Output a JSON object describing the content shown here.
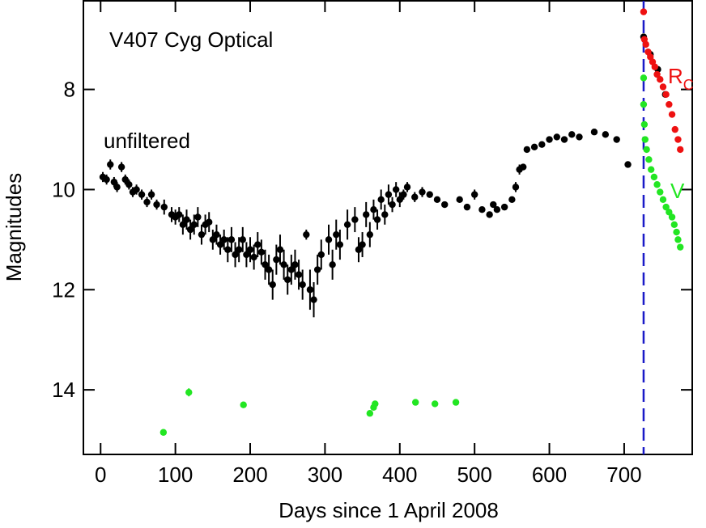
{
  "chart_data": {
    "type": "scatter",
    "title": "V407 Cyg Optical",
    "xlabel": "Days since 1 April 2008",
    "ylabel": "Magnitudes",
    "xlim": [
      -23,
      791
    ],
    "ylim": [
      6.23,
      15.29
    ],
    "y_inverted": true,
    "xticks": [
      0,
      100,
      200,
      300,
      400,
      500,
      600,
      700
    ],
    "yticks": [
      8,
      10,
      12,
      14
    ],
    "vline": {
      "x": 726,
      "color": "#1a1ac8",
      "style": "dashed"
    },
    "series": [
      {
        "name": "unfiltered",
        "color": "#000000",
        "x": [
          3,
          8,
          13,
          18,
          22,
          28,
          33,
          38,
          43,
          48,
          55,
          62,
          68,
          75,
          85,
          95,
          100,
          105,
          110,
          115,
          120,
          125,
          130,
          135,
          140,
          145,
          150,
          155,
          160,
          165,
          170,
          175,
          180,
          185,
          190,
          195,
          200,
          205,
          210,
          215,
          220,
          225,
          230,
          235,
          240,
          245,
          250,
          255,
          260,
          265,
          270,
          275,
          280,
          285,
          290,
          295,
          305,
          310,
          315,
          320,
          330,
          340,
          345,
          350,
          355,
          360,
          365,
          370,
          375,
          380,
          385,
          390,
          395,
          400,
          405,
          410,
          420,
          430,
          440,
          450,
          460,
          480,
          490,
          500,
          510,
          520,
          525,
          530,
          540,
          550,
          555,
          560,
          565,
          570,
          580,
          590,
          600,
          610,
          620,
          630,
          640,
          660,
          675,
          690,
          705,
          726,
          735,
          745,
          755
        ],
        "values": [
          9.75,
          9.8,
          9.5,
          9.85,
          9.95,
          9.55,
          9.8,
          9.9,
          10.05,
          10.0,
          10.1,
          10.25,
          10.1,
          10.3,
          10.35,
          10.5,
          10.55,
          10.5,
          10.7,
          10.6,
          10.8,
          10.7,
          10.55,
          10.9,
          10.7,
          10.65,
          11.0,
          10.9,
          11.1,
          11.0,
          11.2,
          11.0,
          11.3,
          11.2,
          11.0,
          11.3,
          11.2,
          11.35,
          11.1,
          11.25,
          11.5,
          11.6,
          11.9,
          11.4,
          11.2,
          11.5,
          11.8,
          11.6,
          11.5,
          11.7,
          11.9,
          10.9,
          12.0,
          12.2,
          11.6,
          11.3,
          11.0,
          11.5,
          10.9,
          11.1,
          10.7,
          10.6,
          11.2,
          11.1,
          10.5,
          10.9,
          10.4,
          10.6,
          10.2,
          10.5,
          10.1,
          10.3,
          10.0,
          10.2,
          10.1,
          9.95,
          10.15,
          10.05,
          10.1,
          10.2,
          10.3,
          10.2,
          10.35,
          10.1,
          10.4,
          10.5,
          10.3,
          10.4,
          10.35,
          10.2,
          9.95,
          9.6,
          9.55,
          9.2,
          9.15,
          9.1,
          9.0,
          8.95,
          9.0,
          8.9,
          8.95,
          8.85,
          8.9,
          9.0,
          9.5,
          6.95,
          7.3,
          7.6,
          8.1
        ],
        "errors": [
          0.1,
          0.1,
          0.1,
          0.1,
          0.1,
          0.1,
          0.1,
          0.1,
          0.1,
          0.1,
          0.1,
          0.1,
          0.1,
          0.1,
          0.15,
          0.15,
          0.15,
          0.15,
          0.2,
          0.2,
          0.2,
          0.2,
          0.2,
          0.2,
          0.2,
          0.2,
          0.2,
          0.2,
          0.2,
          0.2,
          0.25,
          0.25,
          0.25,
          0.25,
          0.25,
          0.25,
          0.25,
          0.25,
          0.25,
          0.25,
          0.3,
          0.3,
          0.3,
          0.3,
          0.3,
          0.3,
          0.3,
          0.3,
          0.3,
          0.3,
          0.3,
          0.1,
          0.4,
          0.35,
          0.3,
          0.3,
          0.3,
          0.3,
          0.3,
          0.3,
          0.3,
          0.25,
          0.25,
          0.25,
          0.25,
          0.25,
          0.2,
          0.2,
          0.2,
          0.2,
          0.2,
          0.15,
          0.15,
          0.15,
          0.1,
          0.1,
          0.1,
          0.1,
          0.05,
          0.05,
          0.05,
          0.05,
          0.05,
          0.1,
          0.05,
          0.05,
          0.05,
          0.05,
          0.05,
          0.05,
          0.1,
          0.1,
          0.05,
          0.05,
          0.05,
          0.05,
          0.05,
          0.05,
          0.05,
          0.05,
          0.05,
          0.05,
          0.05,
          0.05,
          0.05,
          0.05,
          0.05,
          0.05,
          0.05
        ]
      },
      {
        "name": "V",
        "color": "#22e622",
        "x": [
          84,
          118,
          191,
          360,
          365,
          367,
          421,
          447,
          475,
          726,
          726,
          727,
          728,
          730,
          733,
          736,
          740,
          744,
          748,
          752,
          756,
          760,
          764,
          767,
          770,
          772,
          775
        ],
        "values": [
          14.85,
          14.05,
          14.3,
          14.47,
          14.35,
          14.28,
          14.25,
          14.28,
          14.25,
          7.77,
          8.3,
          8.7,
          9.0,
          9.2,
          9.4,
          9.6,
          9.75,
          9.9,
          10.05,
          10.2,
          10.35,
          10.45,
          10.55,
          10.7,
          10.85,
          11.0,
          11.15
        ],
        "errors": [
          0.05,
          0.08,
          0.06,
          0.05,
          0.05,
          0.05,
          0.04,
          0.04,
          0.04,
          0.03,
          0.03,
          0.03,
          0.03,
          0.03,
          0.03,
          0.03,
          0.03,
          0.03,
          0.03,
          0.03,
          0.03,
          0.03,
          0.03,
          0.03,
          0.03,
          0.03,
          0.03
        ]
      },
      {
        "name": "R",
        "name_sub": "C",
        "color": "#ee1111",
        "x": [
          726,
          727,
          729,
          732,
          735,
          738,
          741,
          744,
          748,
          752,
          756,
          760,
          764,
          768,
          772,
          775
        ],
        "values": [
          6.45,
          7.0,
          7.1,
          7.25,
          7.35,
          7.45,
          7.55,
          7.7,
          7.8,
          7.95,
          8.1,
          8.3,
          8.5,
          8.8,
          9.0,
          9.2
        ],
        "errors": [
          0.03,
          0.03,
          0.03,
          0.03,
          0.03,
          0.03,
          0.03,
          0.03,
          0.03,
          0.03,
          0.03,
          0.03,
          0.03,
          0.03,
          0.03,
          0.03
        ]
      }
    ]
  }
}
